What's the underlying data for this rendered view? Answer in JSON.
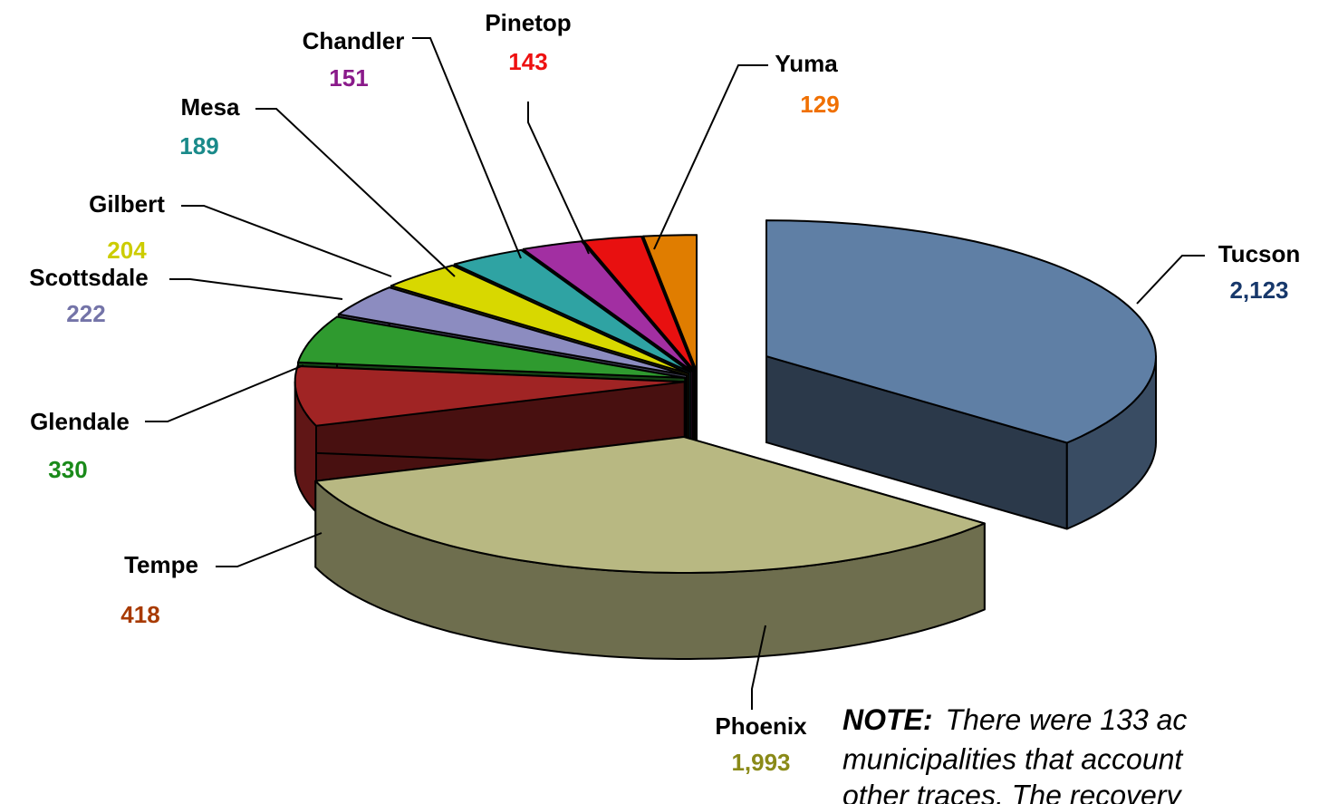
{
  "chart_data": {
    "type": "pie3d",
    "categories": [
      "Tucson",
      "Phoenix",
      "Tempe",
      "Glendale",
      "Scottsdale",
      "Gilbert",
      "Mesa",
      "Chandler",
      "Pinetop",
      "Yuma"
    ],
    "values": [
      2123,
      1993,
      418,
      330,
      222,
      204,
      189,
      151,
      143,
      129
    ],
    "value_labels": [
      "2,123",
      "1,993",
      "418",
      "330",
      "222",
      "204",
      "189",
      "151",
      "143",
      "129"
    ],
    "colors": [
      "#5f7fa5",
      "#b8b882",
      "#a02424",
      "#2f9a2f",
      "#8c8cc0",
      "#d8d800",
      "#2fa3a3",
      "#a22fa2",
      "#e81010",
      "#e07d00"
    ],
    "label_colors": [
      "#17386b",
      "#8a8a18",
      "#a83a00",
      "#1a8a1a",
      "#7474a8",
      "#cccc00",
      "#1a8a8a",
      "#8a1a8a",
      "#ee1111",
      "#f07000"
    ],
    "note": {
      "heading": "NOTE:",
      "lines": [
        "There were 133 ac",
        "municipalities that account",
        "other traces.  The recovery"
      ]
    }
  }
}
